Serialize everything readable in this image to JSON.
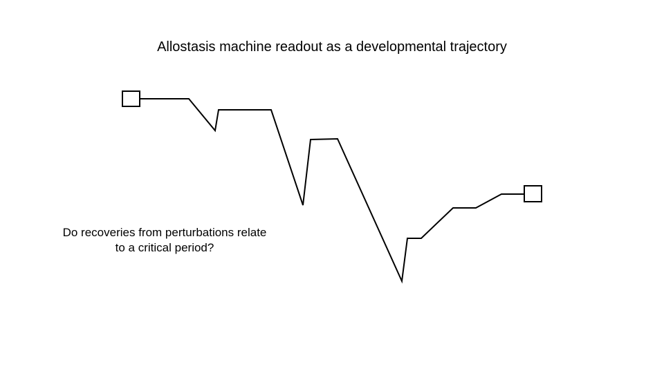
{
  "slide": {
    "title": "Allostasis machine readout as a developmental trajectory",
    "question_line_1": "Do recoveries from perturbations relate",
    "question_line_2": "to a critical period?"
  },
  "colors": {
    "background": "#ffffff",
    "stroke": "#000000",
    "text": "#000000"
  }
}
